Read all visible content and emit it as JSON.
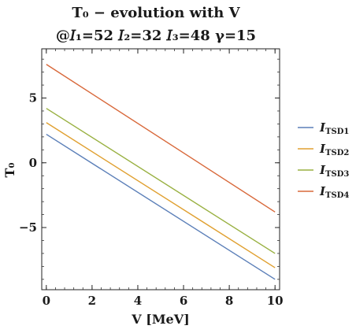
{
  "chart_data": {
    "type": "line",
    "title_line1": "T₀ − evolution with V",
    "title_line2": "@𝐼₁=52 𝐼₂=32 𝐼₃=48 γ=15",
    "xlabel": "V [MeV]",
    "ylabel": "T₀",
    "xlim": [
      -0.2,
      10.2
    ],
    "ylim": [
      -9.8,
      8.8
    ],
    "x_ticks": [
      0,
      2,
      4,
      6,
      8,
      10
    ],
    "y_ticks": [
      -5,
      0,
      5
    ],
    "grid": false,
    "legend_position": "right",
    "series": [
      {
        "name": "I",
        "sub": "TSD1",
        "color": "#5b7fb8",
        "x": [
          0,
          10
        ],
        "y": [
          2.2,
          -9.0
        ]
      },
      {
        "name": "I",
        "sub": "TSD2",
        "color": "#e0a030",
        "x": [
          0,
          10
        ],
        "y": [
          3.1,
          -8.1
        ]
      },
      {
        "name": "I",
        "sub": "TSD3",
        "color": "#98b040",
        "x": [
          0,
          10
        ],
        "y": [
          4.2,
          -7.0
        ]
      },
      {
        "name": "I",
        "sub": "TSD4",
        "color": "#d8683a",
        "x": [
          0,
          10
        ],
        "y": [
          7.6,
          -3.8
        ]
      }
    ]
  }
}
